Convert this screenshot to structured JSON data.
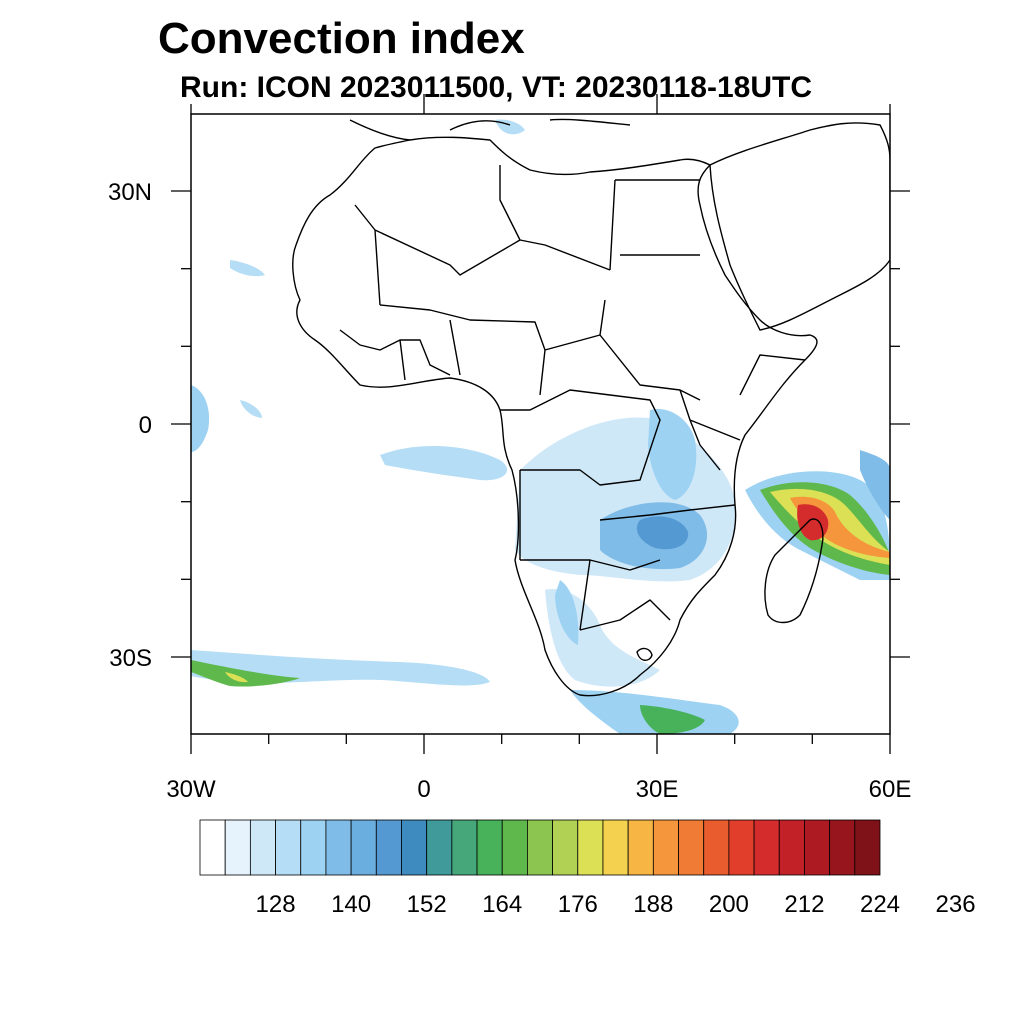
{
  "title": "Convection index",
  "subtitle": "Run: ICON 2023011500,  VT: 20230118-18UTC",
  "axes": {
    "lon_labels": [
      "30W",
      "0",
      "30E",
      "60E"
    ],
    "lat_labels": [
      "30N",
      "0",
      "30S"
    ]
  },
  "colorbar": {
    "colors": [
      "#ffffff",
      "#e6f3fc",
      "#cfe8f8",
      "#b5def6",
      "#9dd2f3",
      "#7fbce8",
      "#6aaedf",
      "#5599d3",
      "#3e8bbf",
      "#3f9a99",
      "#45a77a",
      "#47b25a",
      "#5eb84c",
      "#8cc651",
      "#b0d153",
      "#dbe055",
      "#f4d24f",
      "#f7b544",
      "#f5963c",
      "#f07b34",
      "#e95c2d",
      "#e13f2c",
      "#d42b2c",
      "#c32128",
      "#ad1a22",
      "#97161d",
      "#7e1218"
    ],
    "labels": [
      "128",
      "140",
      "152",
      "164",
      "176",
      "188",
      "200",
      "212",
      "224",
      "236"
    ]
  }
}
